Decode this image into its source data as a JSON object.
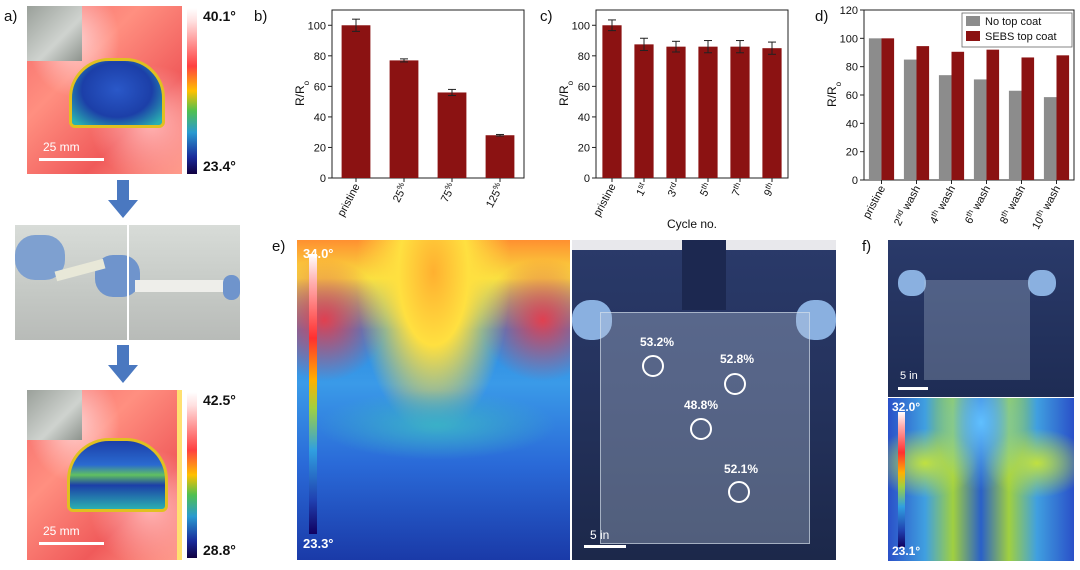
{
  "panel_labels": {
    "a": "a)",
    "b": "b)",
    "c": "c)",
    "d": "d)",
    "e": "e)",
    "f": "f)"
  },
  "panel_a": {
    "top": {
      "temp_max": "40.1°",
      "temp_min": "23.4°",
      "scale": "25 mm"
    },
    "bottom": {
      "temp_max": "42.5°",
      "temp_min": "28.8°",
      "scale": "25 mm"
    }
  },
  "panel_e": {
    "temp_max": "34.0°",
    "temp_min": "23.3°",
    "scale": "5 in",
    "readings": [
      "53.2%",
      "52.8%",
      "48.8%",
      "52.1%"
    ]
  },
  "panel_f": {
    "temp_max": "32.0°",
    "temp_min": "23.1°",
    "scale": "5 in"
  },
  "colors": {
    "bar_red": "#8b1212",
    "bar_gray": "#8c8c8c"
  },
  "chart_data": [
    {
      "id": "b",
      "type": "bar",
      "categories": [
        "pristine",
        "25%",
        "75%",
        "125%"
      ],
      "values": [
        100,
        77,
        56,
        28
      ],
      "errors": [
        4,
        1,
        2,
        0.5
      ],
      "ylabel": "R/R",
      "ylabel_sub": "o",
      "ylim": [
        0,
        110
      ],
      "yticks": [
        "0",
        "20",
        "40",
        "60",
        "80",
        "100"
      ],
      "tick_labels": [
        {
          "base": "pristine",
          "sup": ""
        },
        {
          "base": "25",
          "sup": "%"
        },
        {
          "base": "75",
          "sup": "%"
        },
        {
          "base": "125",
          "sup": "%"
        }
      ]
    },
    {
      "id": "c",
      "type": "bar",
      "categories": [
        "pristine",
        "1st",
        "3rd",
        "5th",
        "7th",
        "9th"
      ],
      "values": [
        100,
        87.5,
        86,
        86,
        86,
        85
      ],
      "errors": [
        3.5,
        4,
        3.5,
        4,
        4,
        4
      ],
      "xlabel": "Cycle no.",
      "ylabel": "R/R",
      "ylabel_sub": "o",
      "ylim": [
        0,
        110
      ],
      "yticks": [
        "0",
        "20",
        "40",
        "60",
        "80",
        "100"
      ],
      "tick_labels": [
        {
          "base": "pristine",
          "sup": ""
        },
        {
          "base": "1",
          "sup": "st"
        },
        {
          "base": "3",
          "sup": "rd"
        },
        {
          "base": "5",
          "sup": "th"
        },
        {
          "base": "7",
          "sup": "th"
        },
        {
          "base": "9",
          "sup": "th"
        }
      ]
    },
    {
      "id": "d",
      "type": "bar",
      "categories": [
        "pristine",
        "2nd wash",
        "4th wash",
        "6th wash",
        "8th wash",
        "10th wash"
      ],
      "series": [
        {
          "name": "No top coat",
          "values": [
            100,
            85,
            74,
            71,
            63,
            58.5
          ]
        },
        {
          "name": "SEBS top coat",
          "values": [
            100,
            94.5,
            90.5,
            92,
            86.5,
            88
          ]
        }
      ],
      "ylabel": "R/R",
      "ylabel_sub": "o",
      "ylim": [
        0,
        120
      ],
      "yticks": [
        "0",
        "20",
        "40",
        "60",
        "80",
        "100",
        "120"
      ],
      "legend": "top-right",
      "tick_labels": [
        {
          "base": "pristine",
          "sup": "",
          "tail": ""
        },
        {
          "base": "2",
          "sup": "nd",
          "tail": " wash"
        },
        {
          "base": "4",
          "sup": "th",
          "tail": " wash"
        },
        {
          "base": "6",
          "sup": "th",
          "tail": " wash"
        },
        {
          "base": "8",
          "sup": "th",
          "tail": " wash"
        },
        {
          "base": "10",
          "sup": "th",
          "tail": " wash"
        }
      ]
    }
  ]
}
